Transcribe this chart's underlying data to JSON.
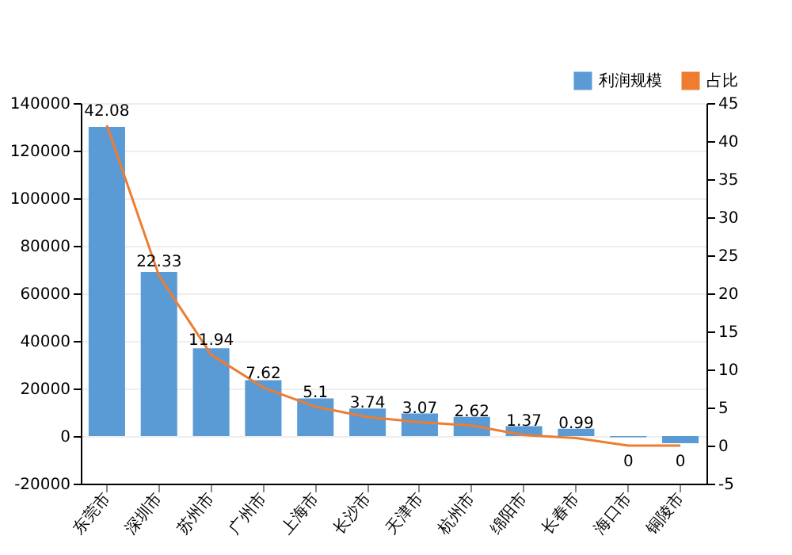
{
  "chart_data": {
    "type": "bar",
    "categories": [
      "东莞市",
      "深圳市",
      "苏州市",
      "广州市",
      "上海市",
      "长沙市",
      "天津市",
      "杭州市",
      "绵阳市",
      "长春市",
      "海口市",
      "铜陵市"
    ],
    "series": [
      {
        "name": "利润规模",
        "color": "#5b9bd5",
        "values": [
          130000,
          69000,
          36900,
          23500,
          15800,
          11600,
          9500,
          8100,
          4200,
          3100,
          -500,
          -3000
        ]
      },
      {
        "name": "占比",
        "type": "line",
        "axis": "y2",
        "color": "#ed7d31",
        "values": [
          42.08,
          22.33,
          11.94,
          7.62,
          5.1,
          3.74,
          3.07,
          2.62,
          1.37,
          0.99,
          0,
          0
        ],
        "data_labels": true
      }
    ],
    "ylim": [
      -20000,
      140000
    ],
    "yticks": [
      -20000,
      0,
      20000,
      40000,
      60000,
      80000,
      100000,
      120000,
      140000
    ],
    "y2lim": [
      -5,
      45
    ],
    "y2ticks": [
      -5,
      0,
      5,
      10,
      15,
      20,
      25,
      30,
      35,
      40,
      45
    ],
    "grid": "y",
    "legend": "top right",
    "marker": "none"
  }
}
